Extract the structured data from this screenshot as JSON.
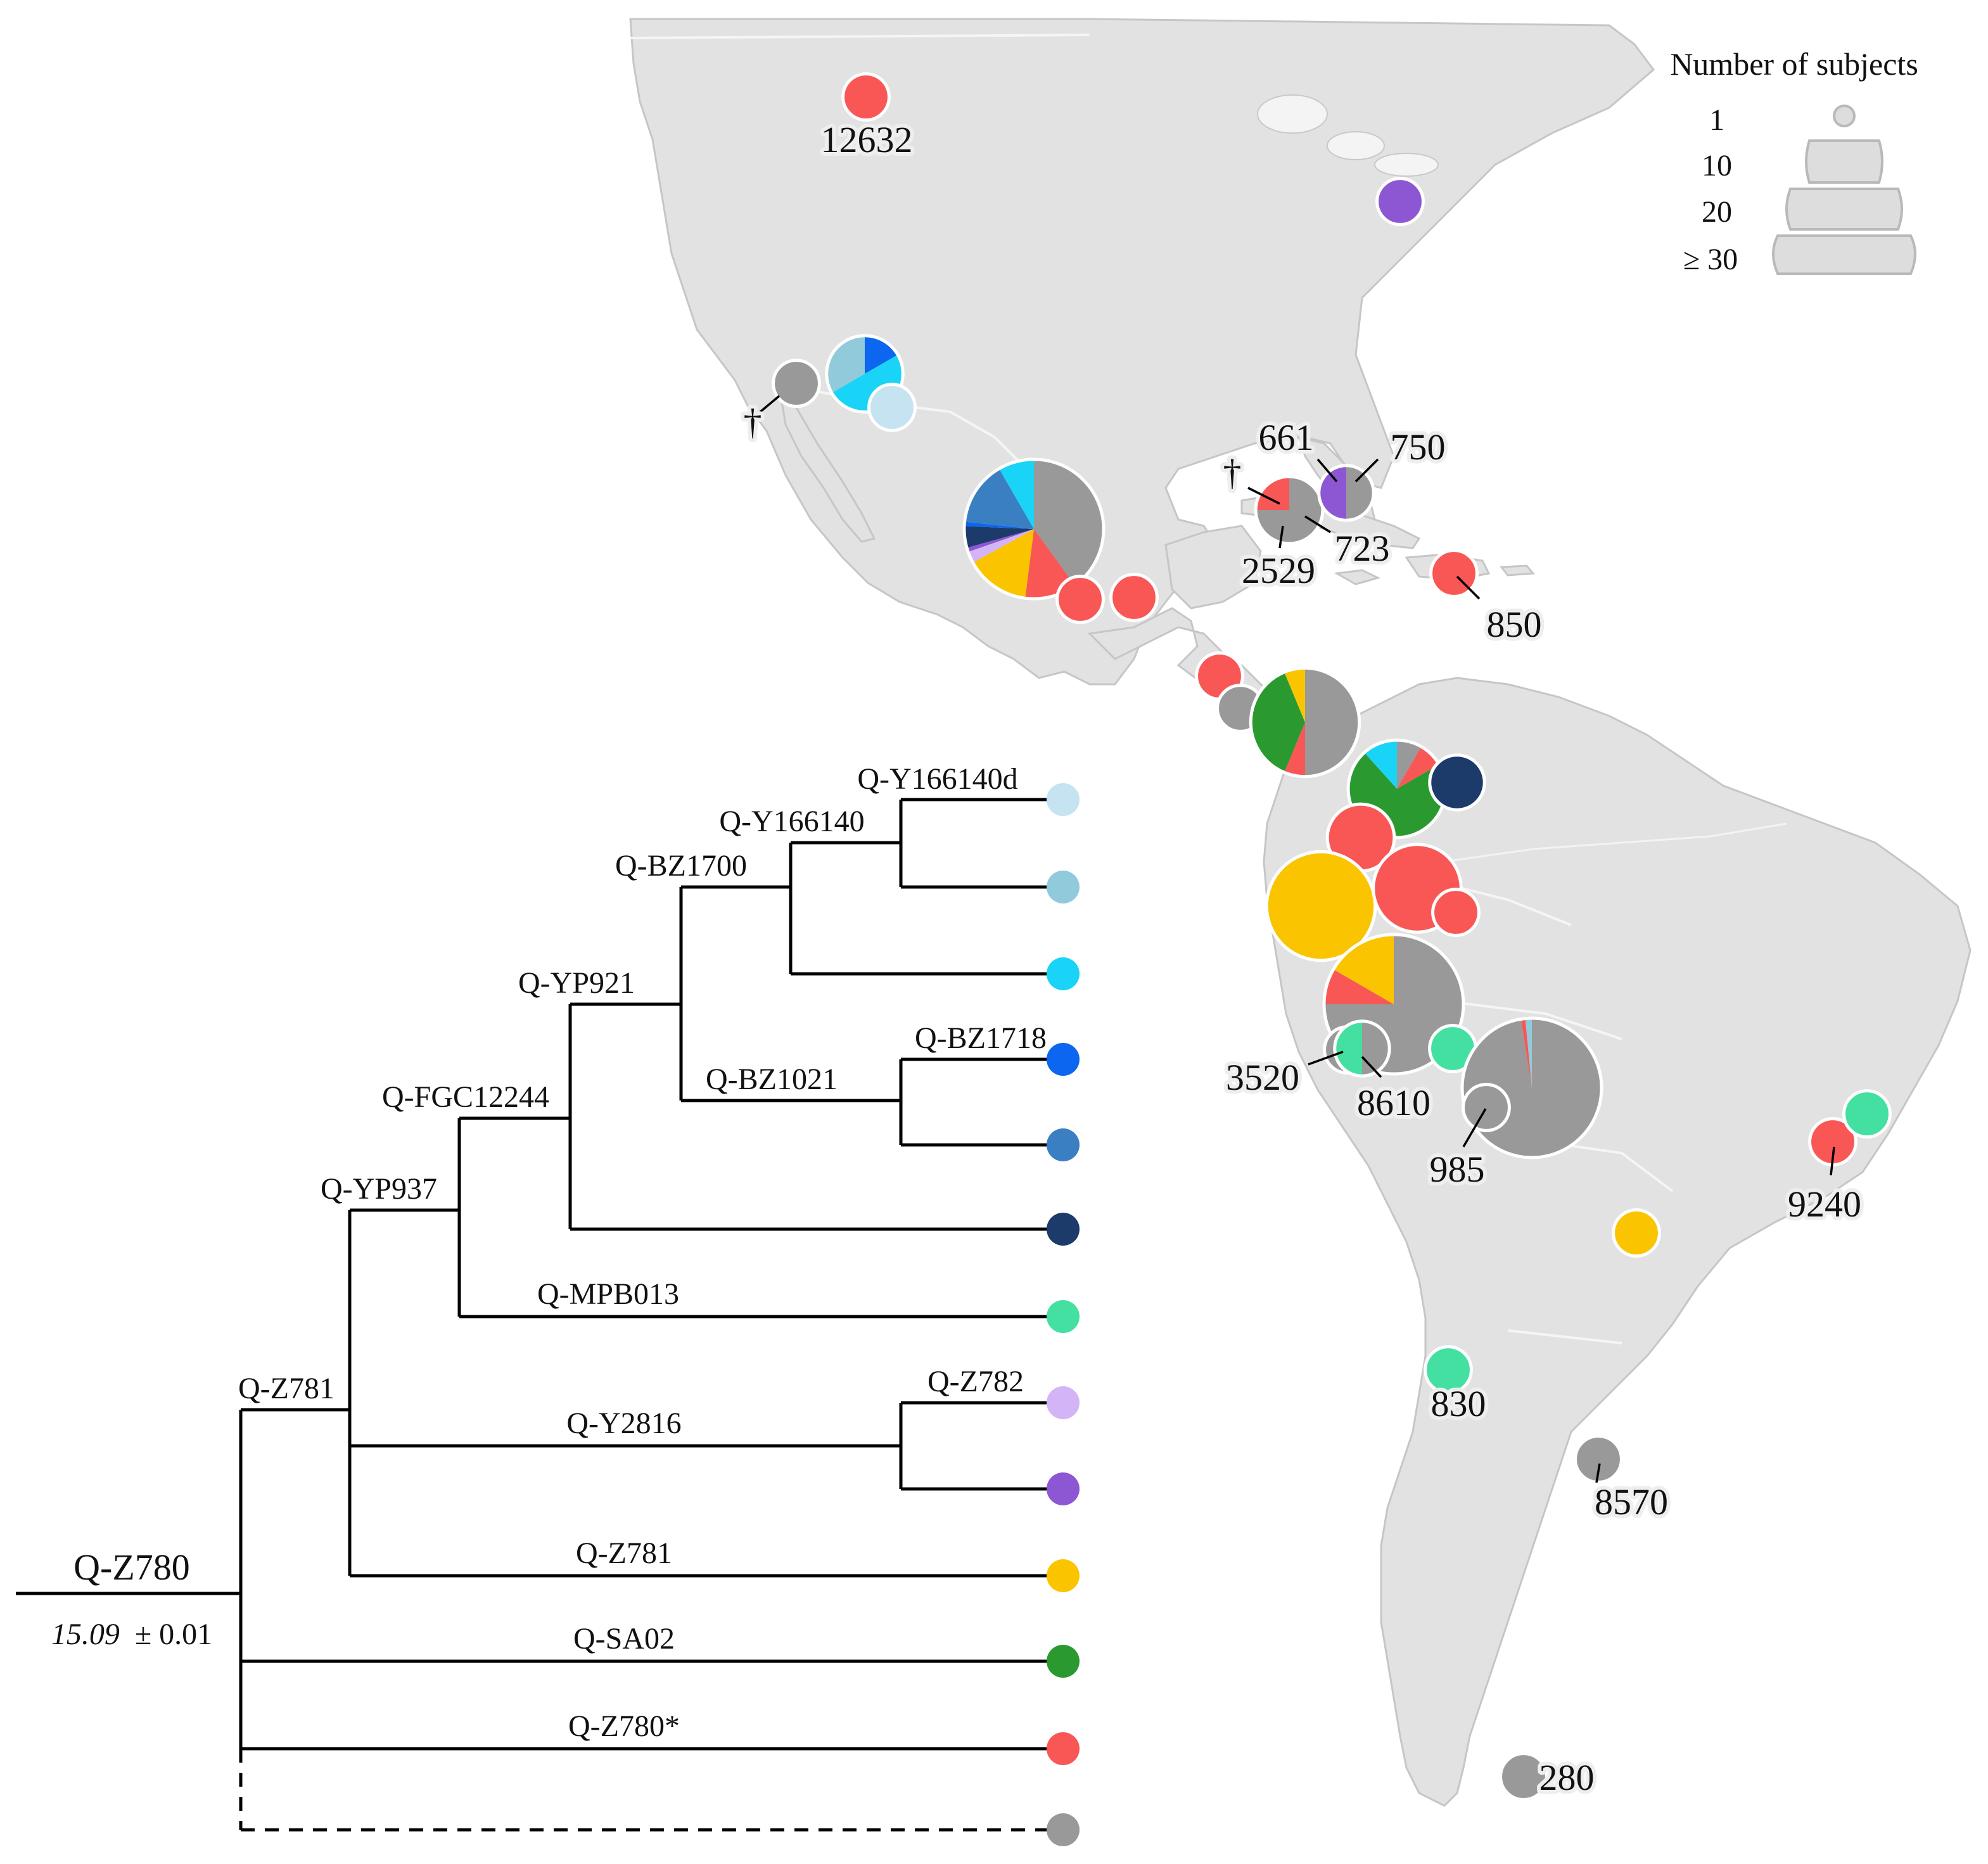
{
  "palette": {
    "Q-Y166140d": "#c5e3f1",
    "Q-Y166140": "#91cbdb",
    "Q-BZ1700": "#19d4f6",
    "Q-BZ1718": "#0c66f0",
    "Q-BZ1021": "#3a7fc2",
    "Q-YP921": "#1c3a6a",
    "Q-MPB013": "#43e0a2",
    "Q-Z782": "#d3b5f7",
    "Q-Y2816": "#8d57d3",
    "Q-Z781": "#fbc400",
    "Q-SA02": "#2a9a30",
    "Q-Z780*": "#f95755",
    "unknown": "#999999",
    "map_land": "#e2e2e2",
    "map_border": "#c6c6c6"
  },
  "tree": {
    "root": {
      "label": "Q-Z780",
      "date": "15.09",
      "date_error": "± 0.01"
    },
    "node_labels": [
      {
        "id": "n-y166140d",
        "label": "Q-Y166140d"
      },
      {
        "id": "n-y166140",
        "label": "Q-Y166140"
      },
      {
        "id": "n-bz1700",
        "label": "Q-BZ1700"
      },
      {
        "id": "n-yp921",
        "label": "Q-YP921"
      },
      {
        "id": "n-bz1718",
        "label": "Q-BZ1718"
      },
      {
        "id": "n-bz1021",
        "label": "Q-BZ1021"
      },
      {
        "id": "n-fgc12244",
        "label": "Q-FGC12244"
      },
      {
        "id": "n-yp937",
        "label": "Q-YP937"
      },
      {
        "id": "n-mpb013",
        "label": "Q-MPB013"
      },
      {
        "id": "n-z781-node",
        "label": "Q-Z781"
      },
      {
        "id": "n-z782",
        "label": "Q-Z782"
      },
      {
        "id": "n-y2816",
        "label": "Q-Y2816"
      },
      {
        "id": "n-z781-branch",
        "label": "Q-Z781"
      },
      {
        "id": "n-sa02",
        "label": "Q-SA02"
      },
      {
        "id": "n-z780star",
        "label": "Q-Z780*"
      }
    ],
    "leaves": [
      {
        "lineage": "Q-Y166140d",
        "color": "#c5e3f1"
      },
      {
        "lineage": "Q-Y166140",
        "color": "#91cbdb"
      },
      {
        "lineage": "Q-BZ1700",
        "color": "#19d4f6"
      },
      {
        "lineage": "Q-BZ1718",
        "color": "#0c66f0"
      },
      {
        "lineage": "Q-BZ1021",
        "color": "#3a7fc2"
      },
      {
        "lineage": "Q-YP921",
        "color": "#1c3a6a"
      },
      {
        "lineage": "Q-MPB013",
        "color": "#43e0a2"
      },
      {
        "lineage": "Q-Z782",
        "color": "#d3b5f7"
      },
      {
        "lineage": "Q-Y2816",
        "color": "#8d57d3"
      },
      {
        "lineage": "Q-Z781",
        "color": "#fbc400"
      },
      {
        "lineage": "Q-SA02",
        "color": "#2a9a30"
      },
      {
        "lineage": "Q-Z780*",
        "color": "#f95755"
      },
      {
        "lineage": "unknown",
        "color": "#999999"
      }
    ]
  },
  "legend": {
    "title": "Number of subjects",
    "sizes": [
      {
        "label": "1",
        "subjects": 1
      },
      {
        "label": "10",
        "subjects": 10
      },
      {
        "label": "20",
        "subjects": 20
      },
      {
        "label": "≥ 30",
        "subjects": 30
      }
    ]
  },
  "map_labels": [
    {
      "id": "canada",
      "text": "12632"
    },
    {
      "id": "baja-dagger",
      "text": "†"
    },
    {
      "id": "cuba-dagger",
      "text": "†"
    },
    {
      "id": "cuba-661",
      "text": "661"
    },
    {
      "id": "bahamas-750",
      "text": "750"
    },
    {
      "id": "cuba-723",
      "text": "723"
    },
    {
      "id": "cuba-2529",
      "text": "2529"
    },
    {
      "id": "puertorico-850",
      "text": "850"
    },
    {
      "id": "peru-3520",
      "text": "3520"
    },
    {
      "id": "peru-8610",
      "text": "8610"
    },
    {
      "id": "bolivia-985",
      "text": "985"
    },
    {
      "id": "brazil-9240",
      "text": "9240"
    },
    {
      "id": "chile-830",
      "text": "830"
    },
    {
      "id": "argentina-8570",
      "text": "8570"
    },
    {
      "id": "patagonia-280",
      "text": "280"
    }
  ],
  "sites": [
    {
      "id": "canada",
      "subjects": 1,
      "composition": [
        [
          "Q-Z780*",
          1
        ]
      ]
    },
    {
      "id": "new-york",
      "subjects": 1,
      "composition": [
        [
          "Q-Y2816",
          1
        ]
      ]
    },
    {
      "id": "baja-california",
      "subjects": 1,
      "composition": [
        [
          "unknown",
          1
        ]
      ]
    },
    {
      "id": "sonora",
      "subjects": 6,
      "composition": [
        [
          "Q-BZ1718",
          1
        ],
        [
          "Q-BZ1700",
          3
        ],
        [
          "Q-Y166140",
          2
        ]
      ]
    },
    {
      "id": "sonora-small",
      "subjects": 1,
      "composition": [
        [
          "Q-Y166140d",
          1
        ]
      ]
    },
    {
      "id": "central-mexico",
      "subjects": 30,
      "composition": [
        [
          "unknown",
          12
        ],
        [
          "Q-Z780*",
          3.6
        ],
        [
          "Q-Z781",
          4.5
        ],
        [
          "Q-Z782",
          0.8
        ],
        [
          "Q-Y2816",
          0.3
        ],
        [
          "Q-YP921",
          1.5
        ],
        [
          "Q-BZ1718",
          0.3
        ],
        [
          "Q-BZ1021",
          4.5
        ],
        [
          "Q-BZ1700",
          2.5
        ]
      ]
    },
    {
      "id": "oaxaca",
      "subjects": 1,
      "composition": [
        [
          "Q-Z780*",
          1
        ]
      ]
    },
    {
      "id": "guatemala",
      "subjects": 1,
      "composition": [
        [
          "Q-Z780*",
          1
        ]
      ]
    },
    {
      "id": "cuba-west",
      "subjects": 4,
      "composition": [
        [
          "unknown",
          3
        ],
        [
          "Q-Z780*",
          1
        ]
      ]
    },
    {
      "id": "bahamas",
      "subjects": 2,
      "composition": [
        [
          "unknown",
          1
        ],
        [
          "Q-Y2816",
          1
        ]
      ]
    },
    {
      "id": "puerto-rico",
      "subjects": 1,
      "composition": [
        [
          "Q-Z780*",
          1
        ]
      ]
    },
    {
      "id": "costa-rica",
      "subjects": 1,
      "composition": [
        [
          "Q-Z780*",
          1
        ]
      ]
    },
    {
      "id": "panama",
      "subjects": 1,
      "composition": [
        [
          "unknown",
          1
        ]
      ]
    },
    {
      "id": "colombia-west",
      "subjects": 16,
      "composition": [
        [
          "unknown",
          8
        ],
        [
          "Q-Z780*",
          1
        ],
        [
          "Q-SA02",
          6
        ],
        [
          "Q-Z781",
          1
        ]
      ]
    },
    {
      "id": "colombia-central",
      "subjects": 12,
      "composition": [
        [
          "unknown",
          1
        ],
        [
          "Q-Z780*",
          1
        ],
        [
          "Q-SA02",
          8.6
        ],
        [
          "Q-BZ1700",
          1.4
        ]
      ]
    },
    {
      "id": "venezuela",
      "subjects": 2,
      "composition": [
        [
          "Q-YP921",
          1
        ]
      ]
    },
    {
      "id": "ecuador-north",
      "subjects": 4,
      "composition": [
        [
          "Q-Z780*",
          1
        ]
      ]
    },
    {
      "id": "ecuador-coast",
      "subjects": 16,
      "composition": [
        [
          "Q-Z781",
          1
        ]
      ]
    },
    {
      "id": "ecuador-andes",
      "subjects": 9,
      "composition": [
        [
          "Q-Z780*",
          1
        ]
      ]
    },
    {
      "id": "ecuador-east",
      "subjects": 1,
      "composition": [
        [
          "Q-Z780*",
          1
        ]
      ]
    },
    {
      "id": "peru",
      "subjects": 36,
      "composition": [
        [
          "unknown",
          27
        ],
        [
          "Q-Z780*",
          3
        ],
        [
          "Q-Z781",
          6
        ]
      ]
    },
    {
      "id": "peru-3520",
      "subjects": 1,
      "composition": [
        [
          "unknown",
          1
        ]
      ]
    },
    {
      "id": "peru-8610",
      "subjects": 2,
      "composition": [
        [
          "unknown",
          1
        ],
        [
          "Q-MPB013",
          1
        ]
      ]
    },
    {
      "id": "peru-amazon",
      "subjects": 1,
      "composition": [
        [
          "Q-MPB013",
          1
        ]
      ]
    },
    {
      "id": "bolivia",
      "subjects": 36,
      "composition": [
        [
          "unknown",
          97.5
        ],
        [
          "Q-Z780*",
          1
        ],
        [
          "Q-Y166140",
          1.5
        ]
      ]
    },
    {
      "id": "bolivia-985",
      "subjects": 1,
      "composition": [
        [
          "unknown",
          1
        ]
      ]
    },
    {
      "id": "paraguay",
      "subjects": 1,
      "composition": [
        [
          "Q-Z781",
          1
        ]
      ]
    },
    {
      "id": "brazil-9240",
      "subjects": 1,
      "composition": [
        [
          "Q-Z780*",
          1
        ]
      ]
    },
    {
      "id": "brazil-east",
      "subjects": 1,
      "composition": [
        [
          "Q-MPB013",
          1
        ]
      ]
    },
    {
      "id": "chile",
      "subjects": 1,
      "composition": [
        [
          "Q-MPB013",
          1
        ]
      ]
    },
    {
      "id": "argentina",
      "subjects": 1,
      "composition": [
        [
          "unknown",
          1
        ]
      ]
    },
    {
      "id": "patagonia",
      "subjects": 1,
      "composition": [
        [
          "unknown",
          1
        ]
      ]
    }
  ]
}
